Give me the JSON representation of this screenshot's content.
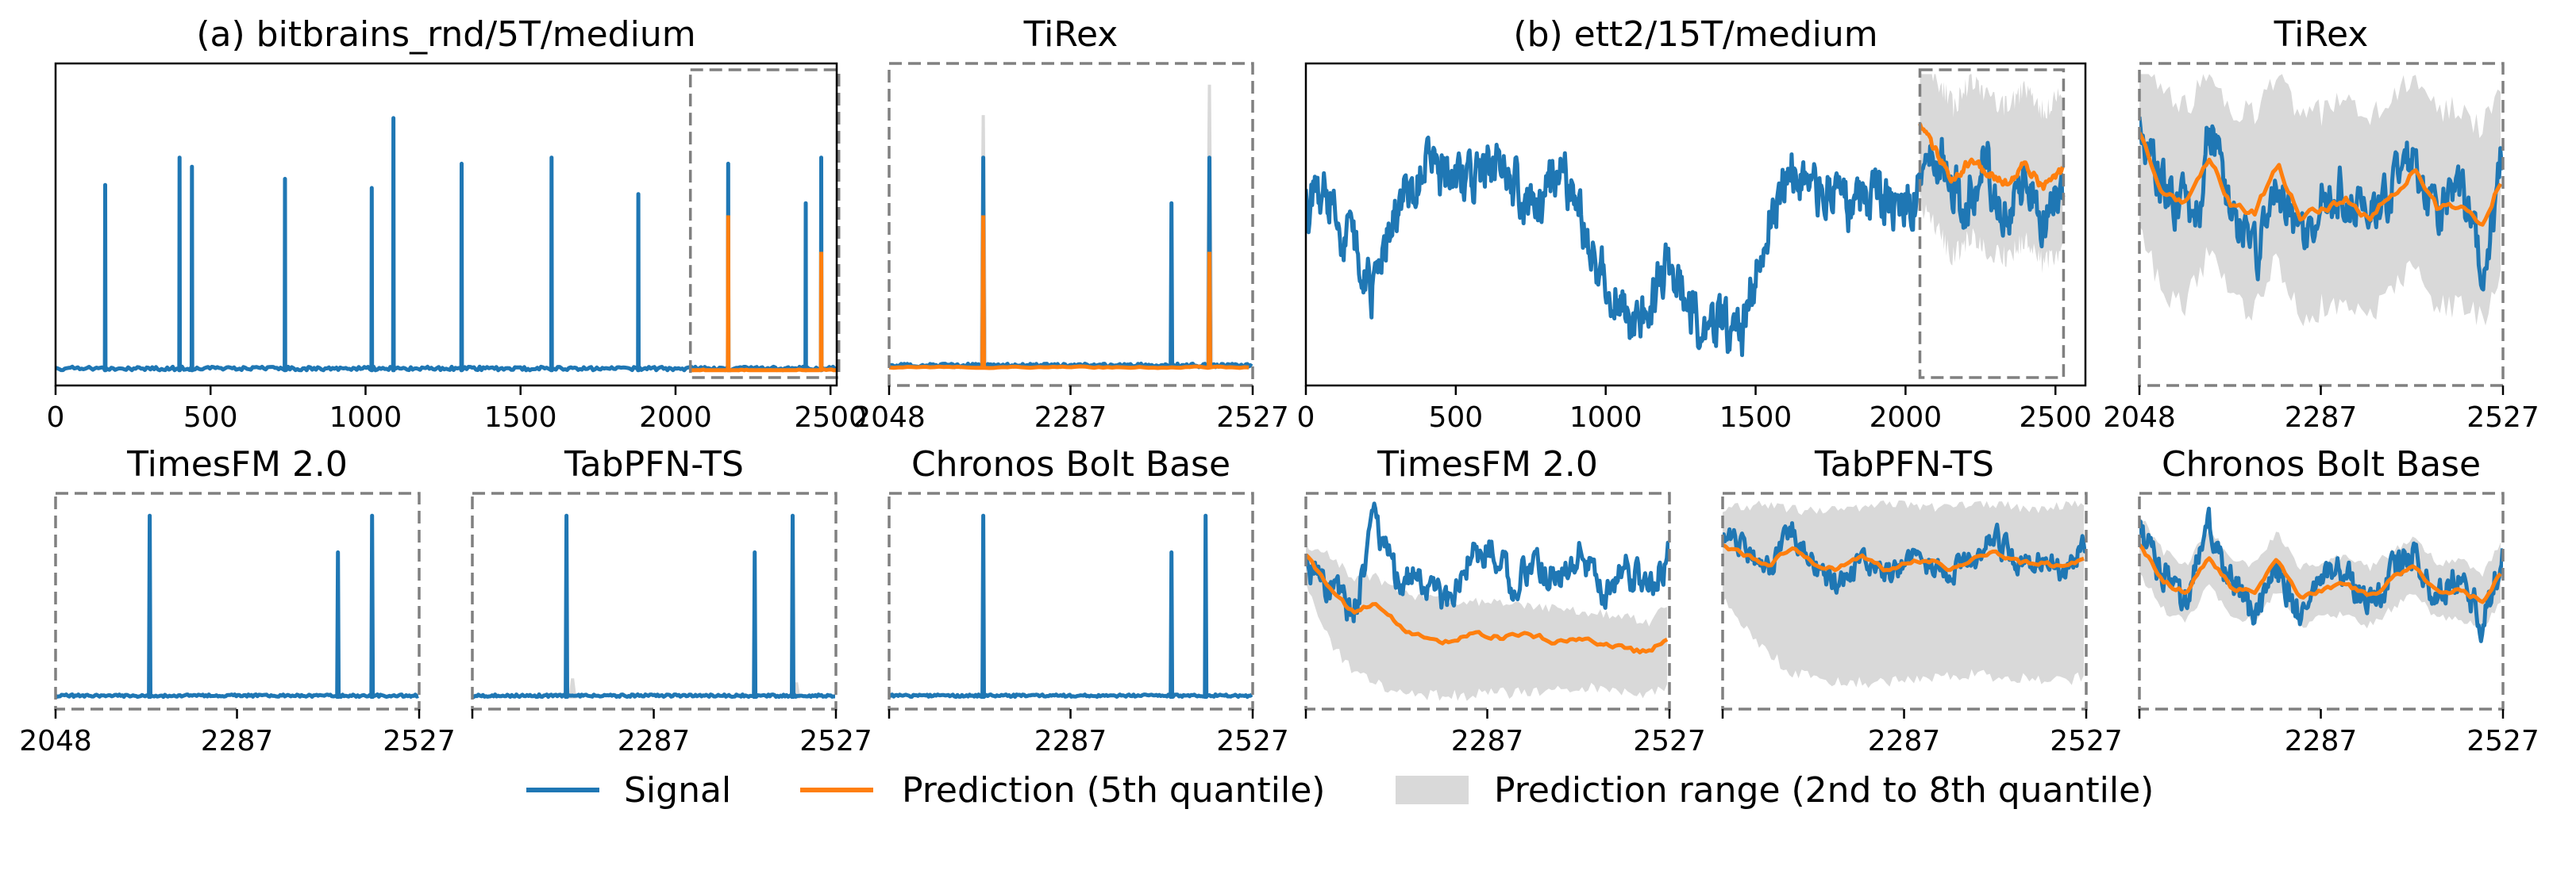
{
  "figure": {
    "legend": {
      "signal": "Signal",
      "prediction": "Prediction (5th quantile)",
      "range": "Prediction range (2nd to 8th quantile)"
    },
    "colors": {
      "signal": "#1f77b4",
      "prediction": "#ff7f0e",
      "range": "#d9d9d9",
      "frame": "#808080"
    }
  },
  "chart_data": [
    {
      "id": "a-main",
      "type": "line",
      "title": "(a) bitbrains_rnd/5T/medium",
      "xlim": [
        0,
        2520
      ],
      "xticks": [
        0,
        500,
        1000,
        1500,
        2000,
        2500
      ],
      "ylim": [
        -0.03,
        1.03
      ],
      "context_end": 2048,
      "forecast_window": [
        2048,
        2527
      ],
      "spikes": [
        [
          160,
          0.63
        ],
        [
          400,
          0.72
        ],
        [
          440,
          0.69
        ],
        [
          740,
          0.65
        ],
        [
          1020,
          0.62
        ],
        [
          1090,
          0.85
        ],
        [
          1310,
          0.7
        ],
        [
          1600,
          0.72
        ],
        [
          1880,
          0.6
        ],
        [
          2170,
          0.7
        ],
        [
          2420,
          0.57
        ],
        [
          2470,
          0.72
        ]
      ],
      "prediction_spikes": [
        [
          2170,
          0.53
        ],
        [
          2470,
          0.41
        ]
      ],
      "baseline": 0.02
    },
    {
      "id": "a-tirex",
      "type": "line",
      "title": "TiRex",
      "xlim": [
        2048,
        2527
      ],
      "xticks": [
        2048,
        2287,
        2527
      ],
      "ylim": [
        -0.03,
        1.03
      ],
      "spikes": [
        [
          2172,
          0.72
        ],
        [
          2420,
          0.57
        ],
        [
          2470,
          0.72
        ]
      ],
      "prediction_spikes": [
        [
          2172,
          0.53
        ],
        [
          2470,
          0.41
        ]
      ],
      "range_spikes": [
        [
          2172,
          0.86
        ],
        [
          2470,
          0.96
        ]
      ],
      "baseline": 0.03
    },
    {
      "id": "a-timesfm",
      "type": "line",
      "title": "TimesFM 2.0",
      "xlim": [
        2048,
        2527
      ],
      "xticks": [
        2048,
        2287,
        2527
      ],
      "ylim": [
        -0.03,
        1.03
      ],
      "spikes": [
        [
          2172,
          0.92
        ],
        [
          2420,
          0.74
        ],
        [
          2465,
          0.92
        ]
      ],
      "baseline": 0.03
    },
    {
      "id": "a-tabpfn",
      "type": "line",
      "title": "TabPFN-TS",
      "xlim": [
        2048,
        2527
      ],
      "xticks": [
        2048,
        2287,
        2527
      ],
      "ylim": [
        -0.03,
        1.03
      ],
      "spikes": [
        [
          2172,
          0.92
        ],
        [
          2420,
          0.74
        ],
        [
          2470,
          0.92
        ]
      ],
      "range_spikes": [
        [
          2180,
          0.12
        ],
        [
          2475,
          0.1
        ]
      ],
      "baseline": 0.03
    },
    {
      "id": "a-chronos",
      "type": "line",
      "title": "Chronos Bolt Base",
      "xlim": [
        2048,
        2527
      ],
      "xticks": [
        2048,
        2287,
        2527
      ],
      "ylim": [
        -0.03,
        1.03
      ],
      "spikes": [
        [
          2172,
          0.92
        ],
        [
          2420,
          0.74
        ],
        [
          2465,
          0.92
        ]
      ],
      "baseline": 0.03
    },
    {
      "id": "b-main",
      "type": "line",
      "title": "(b) ett2/15T/medium",
      "xlim": [
        0,
        2600
      ],
      "xticks": [
        0,
        500,
        1000,
        1500,
        2000,
        2500
      ],
      "ylim": [
        -0.03,
        1.03
      ],
      "context_end": 2048,
      "forecast_window": [
        2048,
        2527
      ],
      "signal_knots": [
        [
          0,
          0.55
        ],
        [
          60,
          0.62
        ],
        [
          140,
          0.45
        ],
        [
          220,
          0.28
        ],
        [
          300,
          0.55
        ],
        [
          400,
          0.68
        ],
        [
          500,
          0.62
        ],
        [
          600,
          0.7
        ],
        [
          700,
          0.62
        ],
        [
          780,
          0.52
        ],
        [
          840,
          0.68
        ],
        [
          900,
          0.6
        ],
        [
          940,
          0.42
        ],
        [
          1000,
          0.32
        ],
        [
          1080,
          0.18
        ],
        [
          1150,
          0.25
        ],
        [
          1200,
          0.36
        ],
        [
          1260,
          0.28
        ],
        [
          1320,
          0.16
        ],
        [
          1380,
          0.18
        ],
        [
          1450,
          0.1
        ],
        [
          1500,
          0.35
        ],
        [
          1560,
          0.55
        ],
        [
          1620,
          0.68
        ],
        [
          1700,
          0.62
        ],
        [
          1800,
          0.55
        ],
        [
          1880,
          0.6
        ],
        [
          1960,
          0.56
        ],
        [
          2048,
          0.6
        ],
        [
          2100,
          0.78
        ],
        [
          2150,
          0.62
        ],
        [
          2200,
          0.56
        ],
        [
          2260,
          0.72
        ],
        [
          2330,
          0.52
        ],
        [
          2400,
          0.65
        ],
        [
          2470,
          0.5
        ],
        [
          2527,
          0.64
        ]
      ],
      "signal_noise": 0.07,
      "prediction_knots": [
        [
          2048,
          0.82
        ],
        [
          2100,
          0.74
        ],
        [
          2160,
          0.64
        ],
        [
          2220,
          0.72
        ],
        [
          2280,
          0.66
        ],
        [
          2340,
          0.64
        ],
        [
          2400,
          0.7
        ],
        [
          2460,
          0.62
        ],
        [
          2527,
          0.68
        ]
      ],
      "range_half_width": 0.25
    },
    {
      "id": "b-tirex",
      "type": "line",
      "title": "TiRex",
      "xlim": [
        2048,
        2527
      ],
      "xticks": [
        2048,
        2287,
        2527
      ],
      "ylim": [
        -0.03,
        1.03
      ],
      "signal_knots": [
        [
          2048,
          0.82
        ],
        [
          2090,
          0.6
        ],
        [
          2130,
          0.52
        ],
        [
          2140,
          0.86
        ],
        [
          2170,
          0.56
        ],
        [
          2200,
          0.38
        ],
        [
          2230,
          0.64
        ],
        [
          2260,
          0.42
        ],
        [
          2290,
          0.58
        ],
        [
          2320,
          0.62
        ],
        [
          2350,
          0.48
        ],
        [
          2380,
          0.62
        ],
        [
          2410,
          0.72
        ],
        [
          2440,
          0.5
        ],
        [
          2470,
          0.62
        ],
        [
          2500,
          0.36
        ],
        [
          2527,
          0.74
        ]
      ],
      "signal_noise": 0.07,
      "prediction_knots": [
        [
          2048,
          0.8
        ],
        [
          2080,
          0.6
        ],
        [
          2110,
          0.56
        ],
        [
          2140,
          0.72
        ],
        [
          2170,
          0.56
        ],
        [
          2200,
          0.54
        ],
        [
          2230,
          0.7
        ],
        [
          2260,
          0.52
        ],
        [
          2290,
          0.55
        ],
        [
          2320,
          0.58
        ],
        [
          2350,
          0.52
        ],
        [
          2380,
          0.6
        ],
        [
          2410,
          0.68
        ],
        [
          2440,
          0.55
        ],
        [
          2470,
          0.56
        ],
        [
          2500,
          0.5
        ],
        [
          2527,
          0.66
        ]
      ],
      "range_half_width": 0.32
    },
    {
      "id": "b-timesfm",
      "type": "line",
      "title": "TimesFM 2.0",
      "xlim": [
        2048,
        2527
      ],
      "xticks": [
        2048,
        2287,
        2527
      ],
      "ylim": [
        -0.03,
        1.03
      ],
      "signal_knots": [
        [
          2048,
          0.68
        ],
        [
          2080,
          0.58
        ],
        [
          2110,
          0.45
        ],
        [
          2140,
          0.9
        ],
        [
          2170,
          0.58
        ],
        [
          2200,
          0.62
        ],
        [
          2230,
          0.48
        ],
        [
          2260,
          0.68
        ],
        [
          2290,
          0.78
        ],
        [
          2320,
          0.6
        ],
        [
          2350,
          0.66
        ],
        [
          2380,
          0.62
        ],
        [
          2410,
          0.76
        ],
        [
          2440,
          0.55
        ],
        [
          2470,
          0.65
        ],
        [
          2500,
          0.56
        ],
        [
          2527,
          0.74
        ]
      ],
      "signal_noise": 0.07,
      "prediction_knots": [
        [
          2048,
          0.72
        ],
        [
          2080,
          0.55
        ],
        [
          2110,
          0.45
        ],
        [
          2140,
          0.48
        ],
        [
          2170,
          0.38
        ],
        [
          2200,
          0.32
        ],
        [
          2230,
          0.3
        ],
        [
          2260,
          0.34
        ],
        [
          2290,
          0.33
        ],
        [
          2320,
          0.32
        ],
        [
          2350,
          0.33
        ],
        [
          2380,
          0.3
        ],
        [
          2410,
          0.32
        ],
        [
          2440,
          0.28
        ],
        [
          2470,
          0.26
        ],
        [
          2500,
          0.25
        ],
        [
          2527,
          0.32
        ]
      ],
      "range_lower_knots": [
        [
          2048,
          0.6
        ],
        [
          2080,
          0.3
        ],
        [
          2110,
          0.15
        ],
        [
          2140,
          0.1
        ],
        [
          2170,
          0.04
        ],
        [
          2200,
          0.04
        ],
        [
          2260,
          0.04
        ],
        [
          2320,
          0.05
        ],
        [
          2380,
          0.07
        ],
        [
          2440,
          0.08
        ],
        [
          2500,
          0.04
        ],
        [
          2527,
          0.08
        ]
      ],
      "range_upper_knots": [
        [
          2048,
          0.78
        ],
        [
          2080,
          0.72
        ],
        [
          2110,
          0.62
        ],
        [
          2140,
          0.62
        ],
        [
          2170,
          0.55
        ],
        [
          2200,
          0.52
        ],
        [
          2260,
          0.5
        ],
        [
          2320,
          0.48
        ],
        [
          2380,
          0.46
        ],
        [
          2440,
          0.44
        ],
        [
          2500,
          0.4
        ],
        [
          2527,
          0.5
        ]
      ]
    },
    {
      "id": "b-tabpfn",
      "type": "line",
      "title": "TabPFN-TS",
      "xlim": [
        2048,
        2527
      ],
      "xticks": [
        2048,
        2287,
        2527
      ],
      "ylim": [
        -0.03,
        1.03
      ],
      "signal_knots": [
        [
          2048,
          0.82
        ],
        [
          2080,
          0.74
        ],
        [
          2110,
          0.66
        ],
        [
          2140,
          0.85
        ],
        [
          2170,
          0.66
        ],
        [
          2200,
          0.58
        ],
        [
          2230,
          0.72
        ],
        [
          2260,
          0.6
        ],
        [
          2290,
          0.7
        ],
        [
          2320,
          0.68
        ],
        [
          2350,
          0.62
        ],
        [
          2380,
          0.74
        ],
        [
          2410,
          0.8
        ],
        [
          2440,
          0.66
        ],
        [
          2470,
          0.72
        ],
        [
          2500,
          0.62
        ],
        [
          2527,
          0.8
        ]
      ],
      "signal_noise": 0.05,
      "prediction_knots": [
        [
          2048,
          0.78
        ],
        [
          2080,
          0.72
        ],
        [
          2110,
          0.68
        ],
        [
          2140,
          0.76
        ],
        [
          2170,
          0.68
        ],
        [
          2200,
          0.66
        ],
        [
          2230,
          0.72
        ],
        [
          2260,
          0.66
        ],
        [
          2290,
          0.68
        ],
        [
          2320,
          0.7
        ],
        [
          2350,
          0.66
        ],
        [
          2380,
          0.7
        ],
        [
          2410,
          0.74
        ],
        [
          2440,
          0.68
        ],
        [
          2470,
          0.68
        ],
        [
          2500,
          0.66
        ],
        [
          2527,
          0.72
        ]
      ],
      "range_lower_knots": [
        [
          2048,
          0.52
        ],
        [
          2090,
          0.3
        ],
        [
          2140,
          0.15
        ],
        [
          2200,
          0.1
        ],
        [
          2260,
          0.1
        ],
        [
          2320,
          0.12
        ],
        [
          2380,
          0.14
        ],
        [
          2440,
          0.12
        ],
        [
          2500,
          0.1
        ],
        [
          2527,
          0.14
        ]
      ],
      "range_upper_knots": [
        [
          2048,
          0.95
        ],
        [
          2100,
          0.98
        ],
        [
          2160,
          0.94
        ],
        [
          2220,
          0.96
        ],
        [
          2280,
          0.98
        ],
        [
          2340,
          0.96
        ],
        [
          2400,
          0.98
        ],
        [
          2460,
          0.95
        ],
        [
          2527,
          0.98
        ]
      ]
    },
    {
      "id": "b-chronos",
      "type": "line",
      "title": "Chronos Bolt Base",
      "xlim": [
        2048,
        2527
      ],
      "xticks": [
        2048,
        2287,
        2527
      ],
      "ylim": [
        -0.03,
        1.03
      ],
      "signal_knots": [
        [
          2048,
          0.82
        ],
        [
          2080,
          0.62
        ],
        [
          2110,
          0.48
        ],
        [
          2140,
          0.86
        ],
        [
          2170,
          0.58
        ],
        [
          2200,
          0.4
        ],
        [
          2230,
          0.66
        ],
        [
          2260,
          0.44
        ],
        [
          2290,
          0.6
        ],
        [
          2320,
          0.64
        ],
        [
          2350,
          0.48
        ],
        [
          2380,
          0.64
        ],
        [
          2410,
          0.74
        ],
        [
          2440,
          0.52
        ],
        [
          2470,
          0.64
        ],
        [
          2500,
          0.4
        ],
        [
          2527,
          0.74
        ]
      ],
      "signal_noise": 0.07,
      "prediction_knots": [
        [
          2048,
          0.78
        ],
        [
          2080,
          0.6
        ],
        [
          2110,
          0.54
        ],
        [
          2140,
          0.72
        ],
        [
          2170,
          0.56
        ],
        [
          2200,
          0.54
        ],
        [
          2230,
          0.7
        ],
        [
          2260,
          0.52
        ],
        [
          2290,
          0.56
        ],
        [
          2320,
          0.58
        ],
        [
          2350,
          0.52
        ],
        [
          2380,
          0.6
        ],
        [
          2410,
          0.68
        ],
        [
          2440,
          0.55
        ],
        [
          2470,
          0.56
        ],
        [
          2500,
          0.5
        ],
        [
          2527,
          0.66
        ]
      ],
      "range_half_width": 0.14
    }
  ]
}
